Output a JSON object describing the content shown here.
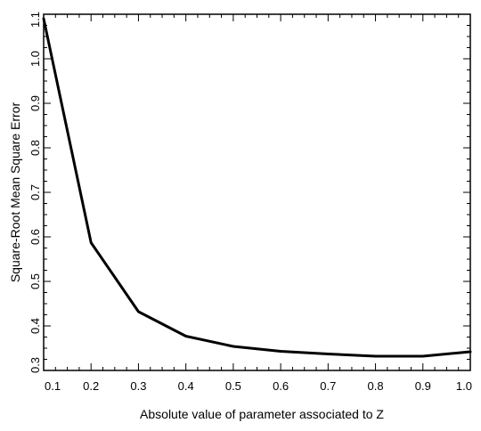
{
  "chart_data": {
    "type": "line",
    "title": "",
    "xlabel": "Absolute value of parameter associated to Z",
    "ylabel": "Square-Root Mean Square Error",
    "xlim": [
      0.1,
      1.0
    ],
    "ylim": [
      0.3,
      1.1
    ],
    "x_ticks": [
      0.1,
      0.2,
      0.3,
      0.4,
      0.5,
      0.6,
      0.7,
      0.8,
      0.9,
      1.0
    ],
    "x_tick_labels": [
      "0.1",
      "0.2",
      "0.3",
      "0.4",
      "0.5",
      "0.6",
      "0.7",
      "0.8",
      "0.9",
      "1.0"
    ],
    "y_ticks": [
      0.3,
      0.4,
      0.5,
      0.6,
      0.7,
      0.8,
      0.9,
      1.0,
      1.1
    ],
    "y_tick_labels": [
      "0.3",
      "0.4",
      "0.5",
      "0.6",
      "0.7",
      "0.8",
      "0.9",
      "1.0",
      "1.1"
    ],
    "grid": false,
    "line_color": "#000000",
    "series": [
      {
        "x": [
          0.1,
          0.2,
          0.3,
          0.4,
          0.5,
          0.6,
          0.7,
          0.8,
          0.9,
          1.0
        ],
        "values": [
          1.09,
          0.587,
          0.432,
          0.377,
          0.354,
          0.343,
          0.337,
          0.332,
          0.332,
          0.342
        ]
      }
    ]
  }
}
